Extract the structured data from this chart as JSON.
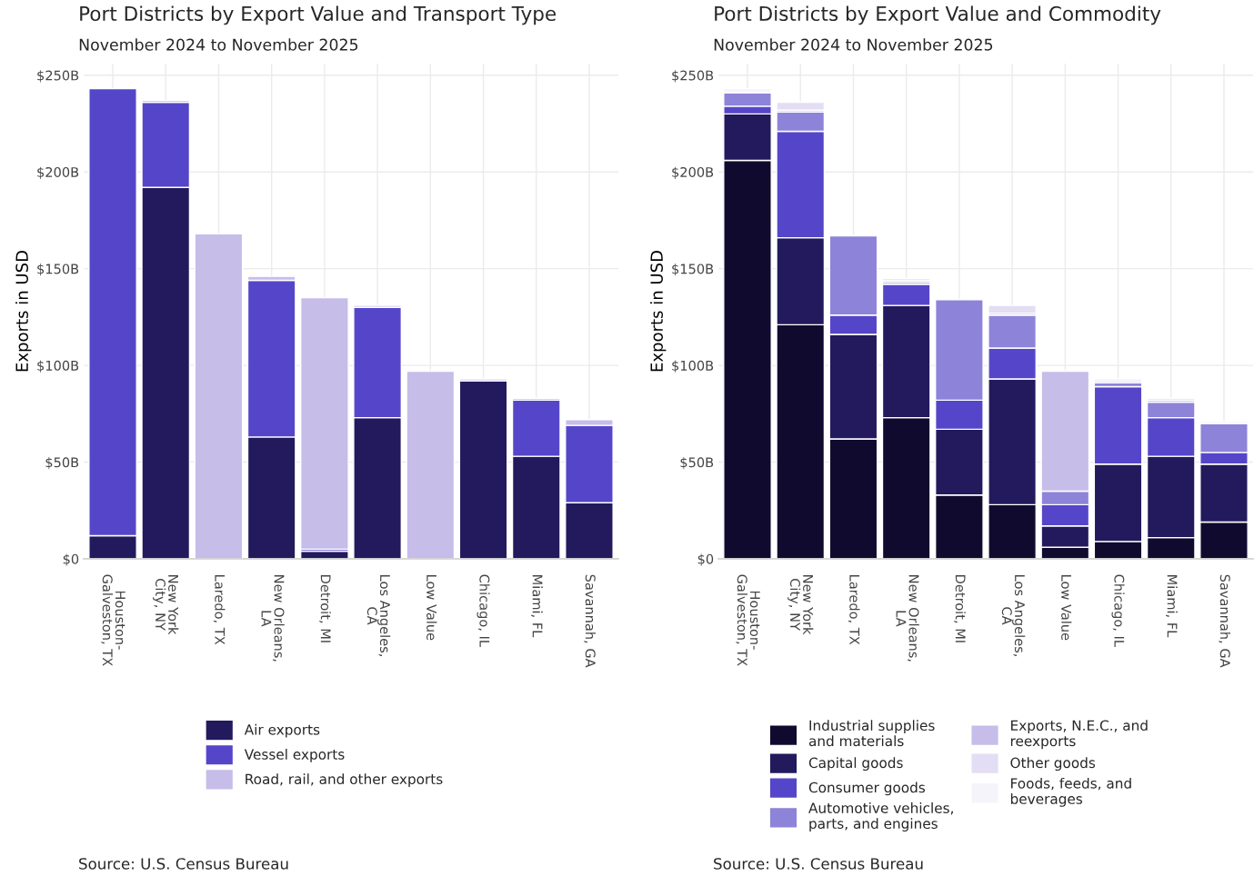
{
  "chart_data": [
    {
      "type": "bar",
      "title": "Port Districts by Export Value and Transport Type",
      "subtitle": "November 2024 to November 2025",
      "ylabel": "Exports in USD",
      "categories": [
        "Houston-\nGalveston, TX",
        "New York\nCity, NY",
        "Laredo, TX",
        "New Orleans,\nLA",
        "Detroit, MI",
        "Los Angeles,\nCA",
        "Low Value",
        "Chicago, IL",
        "Miami, FL",
        "Savannah, GA"
      ],
      "stacked": true,
      "series": [
        {
          "name": "Air exports",
          "color": "#221a5c",
          "values": [
            12,
            192,
            0,
            63,
            4,
            73,
            0,
            92,
            53,
            29
          ]
        },
        {
          "name": "Vessel exports",
          "color": "#5546c9",
          "values": [
            231,
            44,
            0,
            81,
            1,
            57,
            0,
            0,
            29,
            40
          ]
        },
        {
          "name": "Road, rail, and other exports",
          "color": "#c6bde9",
          "values": [
            0,
            1,
            168,
            2,
            130,
            1,
            97,
            1,
            1,
            3
          ]
        }
      ],
      "ylim": [
        0,
        256
      ],
      "yticks": [
        {
          "value": 0,
          "label": "$0"
        },
        {
          "value": 50,
          "label": "$50B"
        },
        {
          "value": 100,
          "label": "$100B"
        },
        {
          "value": 150,
          "label": "$150B"
        },
        {
          "value": 200,
          "label": "$200B"
        },
        {
          "value": 250,
          "label": "$250B"
        }
      ],
      "grid": true,
      "legend": "bottom",
      "annotations": [
        "Source: U.S. Census Bureau"
      ]
    },
    {
      "type": "bar",
      "title": "Port Districts by Export Value and Commodity",
      "subtitle": "November 2024 to November 2025",
      "ylabel": "Exports in USD",
      "categories": [
        "Houston-\nGalveston, TX",
        "New York\nCity, NY",
        "Laredo, TX",
        "New Orleans,\nLA",
        "Detroit, MI",
        "Los Angeles,\nCA",
        "Low Value",
        "Chicago, IL",
        "Miami, FL",
        "Savannah, GA"
      ],
      "stacked": true,
      "series": [
        {
          "name": "Industrial supplies\nand materials",
          "color": "#100b2e",
          "values": [
            206,
            121,
            62,
            73,
            33,
            28,
            6,
            9,
            11,
            19
          ]
        },
        {
          "name": "Capital goods",
          "color": "#221a5c",
          "values": [
            24,
            45,
            54,
            58,
            34,
            65,
            11,
            40,
            42,
            30
          ]
        },
        {
          "name": "Consumer goods",
          "color": "#5546c9",
          "values": [
            4,
            55,
            10,
            11,
            15,
            16,
            11,
            40,
            20,
            6
          ]
        },
        {
          "name": "Automotive vehicles,\nparts, and engines",
          "color": "#8d83d9",
          "values": [
            7,
            10,
            41,
            1,
            52,
            17,
            7,
            2,
            8,
            15
          ]
        },
        {
          "name": "Exports, N.E.C., and\nreexports",
          "color": "#c6bde9",
          "values": [
            0,
            1,
            0,
            1,
            0,
            1,
            62,
            1,
            1,
            0
          ]
        },
        {
          "name": "Other goods",
          "color": "#e3def4",
          "values": [
            0,
            4,
            0,
            1,
            0,
            4,
            0,
            1,
            1,
            0
          ]
        },
        {
          "name": "Foods, feeds, and\nbeverages",
          "color": "#f5f4fa",
          "values": [
            2,
            0,
            0,
            0,
            0,
            0,
            0,
            0,
            0,
            1
          ]
        }
      ],
      "ylim": [
        0,
        256
      ],
      "yticks": [
        {
          "value": 0,
          "label": "$0"
        },
        {
          "value": 50,
          "label": "$50B"
        },
        {
          "value": 100,
          "label": "$100B"
        },
        {
          "value": 150,
          "label": "$150B"
        },
        {
          "value": 200,
          "label": "$200B"
        },
        {
          "value": 250,
          "label": "$250B"
        }
      ],
      "grid": true,
      "legend": "bottom",
      "annotations": [
        "Source: U.S. Census Bureau"
      ]
    }
  ]
}
